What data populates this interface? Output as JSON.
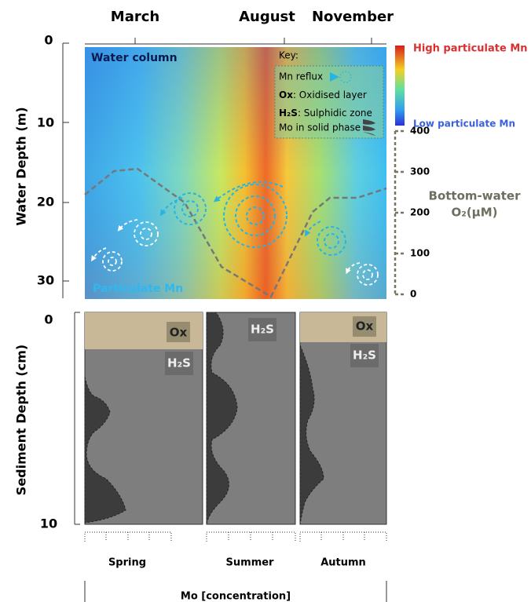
{
  "top_axis": {
    "months": [
      "March",
      "August",
      "November"
    ]
  },
  "water_panel": {
    "y_label": "Water Depth (m)",
    "yticks": [
      "0",
      "10",
      "20",
      "30"
    ],
    "title": "Water column",
    "bottom_label": "Particulate Mn"
  },
  "colorbar": {
    "high": "High particulate Mn",
    "low": "Low particulate Mn"
  },
  "key": {
    "title": "Key:",
    "items": [
      {
        "term": "",
        "text": "Mn reflux"
      },
      {
        "term": "Ox",
        "text": ": Oxidised layer"
      },
      {
        "term": "H₂S",
        "text": ": Sulphidic zone"
      },
      {
        "term": "",
        "text": "Mo in solid phase"
      }
    ]
  },
  "o2_axis": {
    "label": [
      "Bottom-water",
      "O₂(μM)"
    ],
    "ticks": [
      "400",
      "300",
      "200",
      "100",
      "0"
    ]
  },
  "sediment_panel": {
    "y_label": "Sediment Depth (cm)",
    "yticks": [
      "0",
      "10"
    ],
    "panels": [
      {
        "season": "Spring",
        "labels": [
          "Ox",
          "H₂S"
        ]
      },
      {
        "season": "Summer",
        "labels": [
          "H₂S"
        ]
      },
      {
        "season": "Autumn",
        "labels": [
          "Ox",
          "H₂S"
        ]
      }
    ],
    "x_label": "Mo [concentration]"
  }
}
